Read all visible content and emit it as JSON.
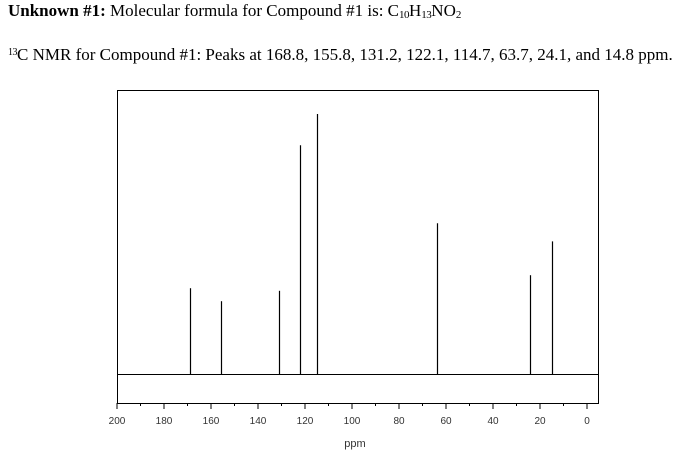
{
  "header": {
    "unknown_label": "Unknown #1:",
    "formula_intro": " Molecular formula for Compound #1 is: C",
    "formula_c": "10",
    "formula_h_letter": "H",
    "formula_h": "13",
    "formula_rest": "NO",
    "formula_o": "2"
  },
  "nmr_text": {
    "isotope_mass": "13",
    "body": "C NMR for Compound #1: Peaks at 168.8, 155.8, 131.2, 122.1, 114.7, 63.7, 24.1, and 14.8 ppm."
  },
  "chart_data": {
    "type": "line",
    "title": "",
    "xlabel": "ppm",
    "ylabel": "",
    "xlim": [
      200,
      0
    ],
    "x_reversed": true,
    "xticks": [
      200,
      180,
      160,
      140,
      120,
      100,
      80,
      60,
      40,
      20,
      0
    ],
    "xtick_labels": [
      "200",
      "180",
      "160",
      "140",
      "120",
      "100",
      "80",
      "60",
      "40",
      "20",
      "0"
    ],
    "grid": false,
    "series": [
      {
        "peaks": [
          {
            "ppm": 168.8,
            "relative_intensity": 0.33
          },
          {
            "ppm": 155.8,
            "relative_intensity": 0.28
          },
          {
            "ppm": 131.2,
            "relative_intensity": 0.32
          },
          {
            "ppm": 122.1,
            "relative_intensity": 0.88
          },
          {
            "ppm": 114.7,
            "relative_intensity": 1.0
          },
          {
            "ppm": 63.7,
            "relative_intensity": 0.58
          },
          {
            "ppm": 24.1,
            "relative_intensity": 0.38
          },
          {
            "ppm": 14.8,
            "relative_intensity": 0.51
          }
        ]
      }
    ]
  }
}
